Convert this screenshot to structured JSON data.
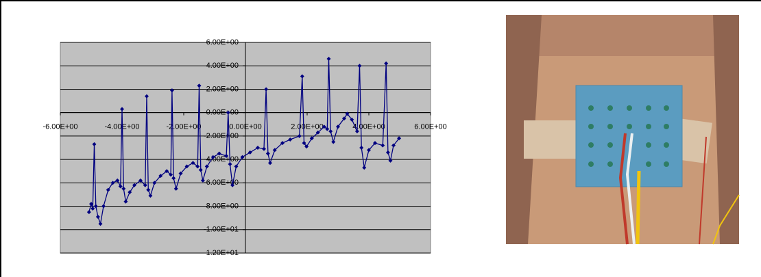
{
  "chart_data": {
    "type": "line",
    "color": "#000080",
    "marker": "diamond",
    "grid": true,
    "xlim": [
      -6,
      6
    ],
    "xticks": [
      {
        "value": -6,
        "label": "-6.00E+00"
      },
      {
        "value": -4,
        "label": "-4.00E+00"
      },
      {
        "value": -2,
        "label": "-2.00E+00"
      },
      {
        "value": 0,
        "label": "0.00E+00"
      },
      {
        "value": 2,
        "label": "2.00E+00"
      },
      {
        "value": 4,
        "label": "4.00E+00"
      },
      {
        "value": 6,
        "label": "6.00E+00"
      }
    ],
    "ylim": [
      -12,
      6
    ],
    "yticks": [
      {
        "value": 6,
        "label": "6.00E+00"
      },
      {
        "value": 4,
        "label": "4.00E+00"
      },
      {
        "value": 2,
        "label": "2.00E+00"
      },
      {
        "value": 0,
        "label": "0.00E+00"
      },
      {
        "value": -2,
        "label": "-2.00E+00"
      },
      {
        "value": -4,
        "label": "-4.00E+00"
      },
      {
        "value": -6,
        "label": "-6.00E+00"
      },
      {
        "value": -8,
        "label": "-8.00E+00"
      },
      {
        "value": -10,
        "label": "-1.00E+01"
      },
      {
        "value": -12,
        "label": "-1.20E+01"
      }
    ],
    "x": [
      -5.07,
      -5.0,
      -4.95,
      -4.9,
      -4.85,
      -4.78,
      -4.7,
      -4.6,
      -4.45,
      -4.3,
      -4.15,
      -4.05,
      -4.0,
      -3.95,
      -3.88,
      -3.75,
      -3.6,
      -3.4,
      -3.25,
      -3.2,
      -3.15,
      -3.08,
      -2.95,
      -2.75,
      -2.55,
      -2.42,
      -2.38,
      -2.33,
      -2.25,
      -2.1,
      -1.9,
      -1.7,
      -1.55,
      -1.5,
      -1.45,
      -1.38,
      -1.25,
      -1.05,
      -0.85,
      -0.62,
      -0.56,
      -0.5,
      -0.42,
      -0.3,
      -0.1,
      0.15,
      0.4,
      0.6,
      0.67,
      0.73,
      0.8,
      0.95,
      1.2,
      1.45,
      1.75,
      1.84,
      1.9,
      1.98,
      2.15,
      2.35,
      2.55,
      2.65,
      2.7,
      2.76,
      2.85,
      3.0,
      3.2,
      3.3,
      3.45,
      3.62,
      3.7,
      3.76,
      3.85,
      4.0,
      4.2,
      4.45,
      4.56,
      4.62,
      4.7,
      4.8,
      4.98
    ],
    "values": [
      -8.5,
      -7.8,
      -8.2,
      -2.7,
      -8.0,
      -8.9,
      -9.5,
      -8.0,
      -6.6,
      -6.0,
      -5.8,
      -6.3,
      0.3,
      -6.5,
      -7.6,
      -6.8,
      -6.2,
      -5.8,
      -6.2,
      1.4,
      -6.6,
      -7.1,
      -6.0,
      -5.4,
      -5.0,
      -5.3,
      1.9,
      -5.6,
      -6.5,
      -5.2,
      -4.6,
      -4.3,
      -4.6,
      2.3,
      -4.9,
      -5.8,
      -4.6,
      -3.8,
      -3.5,
      -3.7,
      0.0,
      -4.4,
      -6.2,
      -4.6,
      -3.8,
      -3.4,
      -3.0,
      -3.1,
      2.0,
      -3.5,
      -4.3,
      -3.2,
      -2.6,
      -2.3,
      -2.0,
      3.1,
      -2.6,
      -2.9,
      -2.2,
      -1.7,
      -1.2,
      -1.4,
      4.6,
      -1.6,
      -2.5,
      -1.2,
      -0.5,
      -0.1,
      -0.6,
      -1.6,
      4.0,
      -3.0,
      -4.7,
      -3.2,
      -2.6,
      -2.8,
      4.2,
      -3.4,
      -4.1,
      -2.8,
      -2.2
    ]
  }
}
